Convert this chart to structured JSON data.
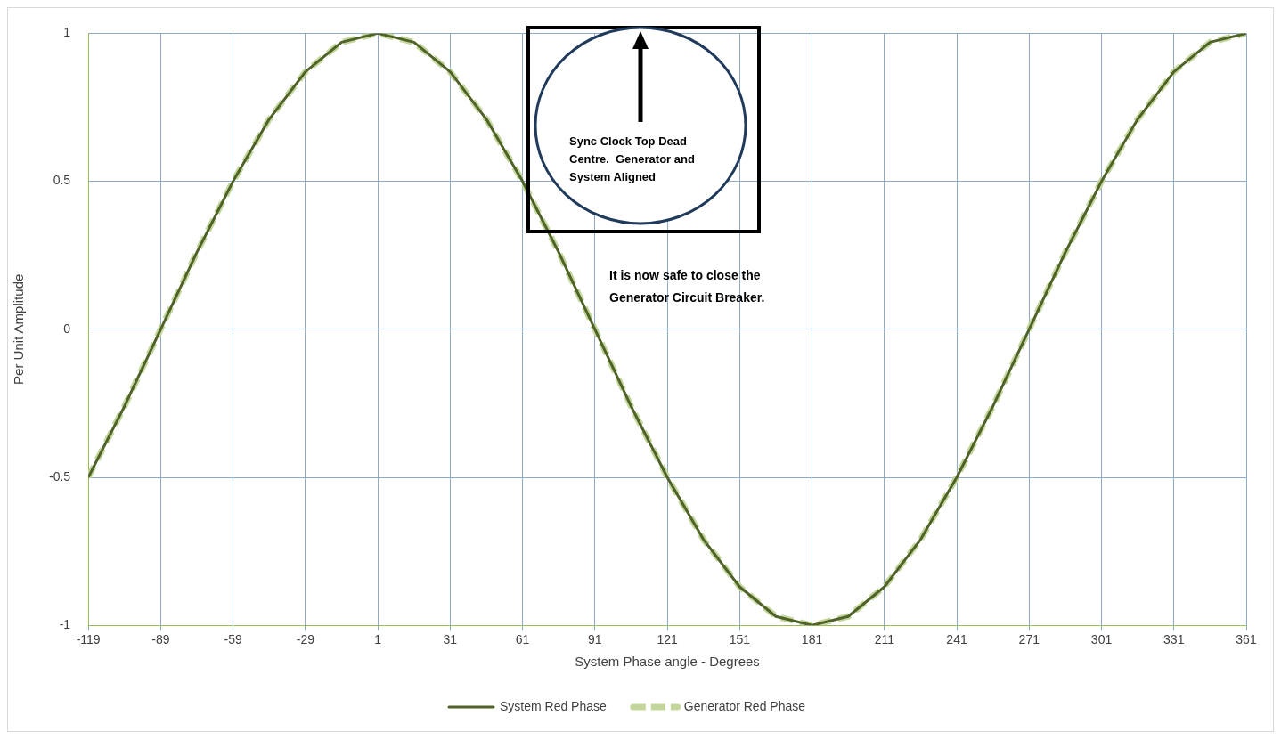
{
  "chart_data": {
    "type": "line",
    "xlabel": "System Phase angle - Degrees",
    "ylabel": "Per Unit Amplitude",
    "x": [
      -119,
      -104,
      -89,
      -74,
      -59,
      -44,
      -29,
      -14,
      1,
      16,
      31,
      46,
      61,
      76,
      91,
      106,
      121,
      136,
      151,
      166,
      181,
      196,
      211,
      226,
      241,
      256,
      271,
      286,
      301,
      316,
      331,
      346,
      361
    ],
    "series": [
      {
        "name": "System Red Phase",
        "color": "#4f6228",
        "line_style": "solid",
        "values": [
          -0.5,
          -0.26,
          0,
          0.26,
          0.5,
          0.71,
          0.87,
          0.97,
          1,
          0.97,
          0.87,
          0.71,
          0.5,
          0.26,
          0,
          -0.26,
          -0.5,
          -0.71,
          -0.87,
          -0.97,
          -1,
          -0.97,
          -0.87,
          -0.71,
          -0.5,
          -0.26,
          0,
          0.26,
          0.5,
          0.71,
          0.87,
          0.97,
          1
        ]
      },
      {
        "name": "Generator Red Phase",
        "color": "#c3d69b",
        "line_style": "dashed",
        "values": [
          -0.5,
          -0.26,
          0,
          0.26,
          0.5,
          0.71,
          0.87,
          0.97,
          1,
          0.97,
          0.87,
          0.71,
          0.5,
          0.26,
          0,
          -0.26,
          -0.5,
          -0.71,
          -0.87,
          -0.97,
          -1,
          -0.97,
          -0.87,
          -0.71,
          -0.5,
          -0.26,
          0,
          0.26,
          0.5,
          0.71,
          0.87,
          0.97,
          1
        ]
      }
    ],
    "xlim": [
      -119,
      361
    ],
    "xticks": [
      -119,
      -89,
      -59,
      -29,
      1,
      31,
      61,
      91,
      121,
      151,
      181,
      211,
      241,
      271,
      301,
      331,
      361
    ],
    "ylim": [
      -1,
      1
    ],
    "yticks": [
      -1,
      -0.5,
      0,
      0.5,
      1
    ],
    "grid": true,
    "legend": "bottom",
    "annotations": [
      "Sync Clock Top Dead Centre.  Generator and System Aligned",
      "It is now safe to close the Generator Circuit Breaker."
    ]
  }
}
